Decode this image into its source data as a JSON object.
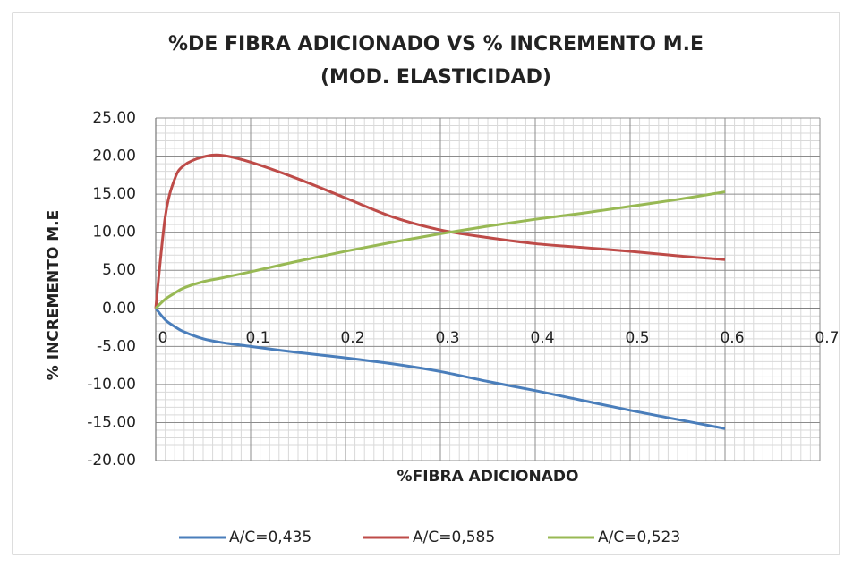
{
  "chart_data": {
    "type": "line",
    "title": [
      "%DE FIBRA ADICIONADO VS % INCREMENTO  M.E",
      "(MOD. ELASTICIDAD)"
    ],
    "x_label": "%FIBRA ADICIONADO",
    "y_label": "% INCREMENTO M.E",
    "x": [
      0,
      0.01,
      0.02,
      0.03,
      0.05,
      0.07,
      0.1,
      0.15,
      0.2,
      0.25,
      0.3,
      0.35,
      0.4,
      0.45,
      0.5,
      0.55,
      0.6
    ],
    "series": [
      {
        "name": "A/C=0,435",
        "color": "#4a7ebb",
        "values": [
          0,
          -1.5,
          -2.4,
          -3.1,
          -4.0,
          -4.5,
          -5.0,
          -5.8,
          -6.5,
          -7.3,
          -8.3,
          -9.6,
          -10.8,
          -12.1,
          -13.4,
          -14.6,
          -15.8
        ]
      },
      {
        "name": "A/C=0,585",
        "color": "#be4b48",
        "values": [
          0,
          12,
          17,
          18.8,
          19.9,
          20.1,
          19.2,
          17,
          14.5,
          12,
          10.3,
          9.3,
          8.5,
          8.0,
          7.5,
          6.9,
          6.4
        ]
      },
      {
        "name": "A/C=0,523",
        "color": "#98b954",
        "values": [
          0,
          1.2,
          2.0,
          2.7,
          3.5,
          4.0,
          4.8,
          6.2,
          7.5,
          8.7,
          9.8,
          10.8,
          11.7,
          12.5,
          13.4,
          14.3,
          15.3
        ]
      }
    ],
    "xlim": [
      0,
      0.7
    ],
    "xticks": [
      0,
      0.1,
      0.2,
      0.3,
      0.4,
      0.5,
      0.6,
      0.7
    ],
    "ylim": [
      -20,
      25
    ],
    "yticks": [
      {
        "value": -20,
        "label": "-20.00"
      },
      {
        "value": -15,
        "label": "-15.00"
      },
      {
        "value": -10,
        "label": "-10.00"
      },
      {
        "value": -5,
        "label": "-5.00"
      },
      {
        "value": 0,
        "label": "0.00"
      },
      {
        "value": 5,
        "label": "5.00"
      },
      {
        "value": 10,
        "label": "10.00"
      },
      {
        "value": 15,
        "label": "15.00"
      },
      {
        "value": 20,
        "label": "20.00"
      },
      {
        "value": 25,
        "label": "25.00"
      }
    ],
    "grid": true,
    "minor_grid": true,
    "legend": "bottom"
  }
}
